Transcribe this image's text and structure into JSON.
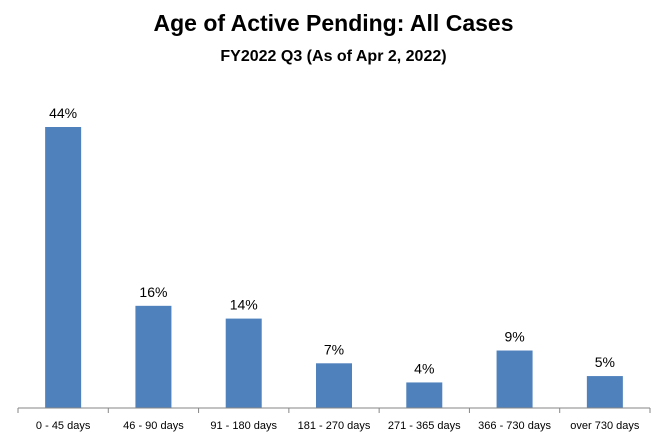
{
  "chart_data": {
    "type": "bar",
    "title": "Age of Active Pending: All Cases",
    "subtitle": "FY2022 Q3 (As of Apr 2, 2022)",
    "categories": [
      "0 - 45 days",
      "46 - 90 days",
      "91 - 180 days",
      "181 - 270 days",
      "271 - 365 days",
      "366 - 730 days",
      "over 730 days"
    ],
    "values": [
      44,
      16,
      14,
      7,
      4,
      9,
      5
    ],
    "data_labels": [
      "44%",
      "16%",
      "14%",
      "7%",
      "4%",
      "9%",
      "5%"
    ],
    "xlabel": "",
    "ylabel": "",
    "ylim": [
      0,
      44
    ],
    "grid": false,
    "legend": "none",
    "bar_color": "#4F81BD",
    "axis_color": "#868686",
    "text_color": "#000000"
  }
}
